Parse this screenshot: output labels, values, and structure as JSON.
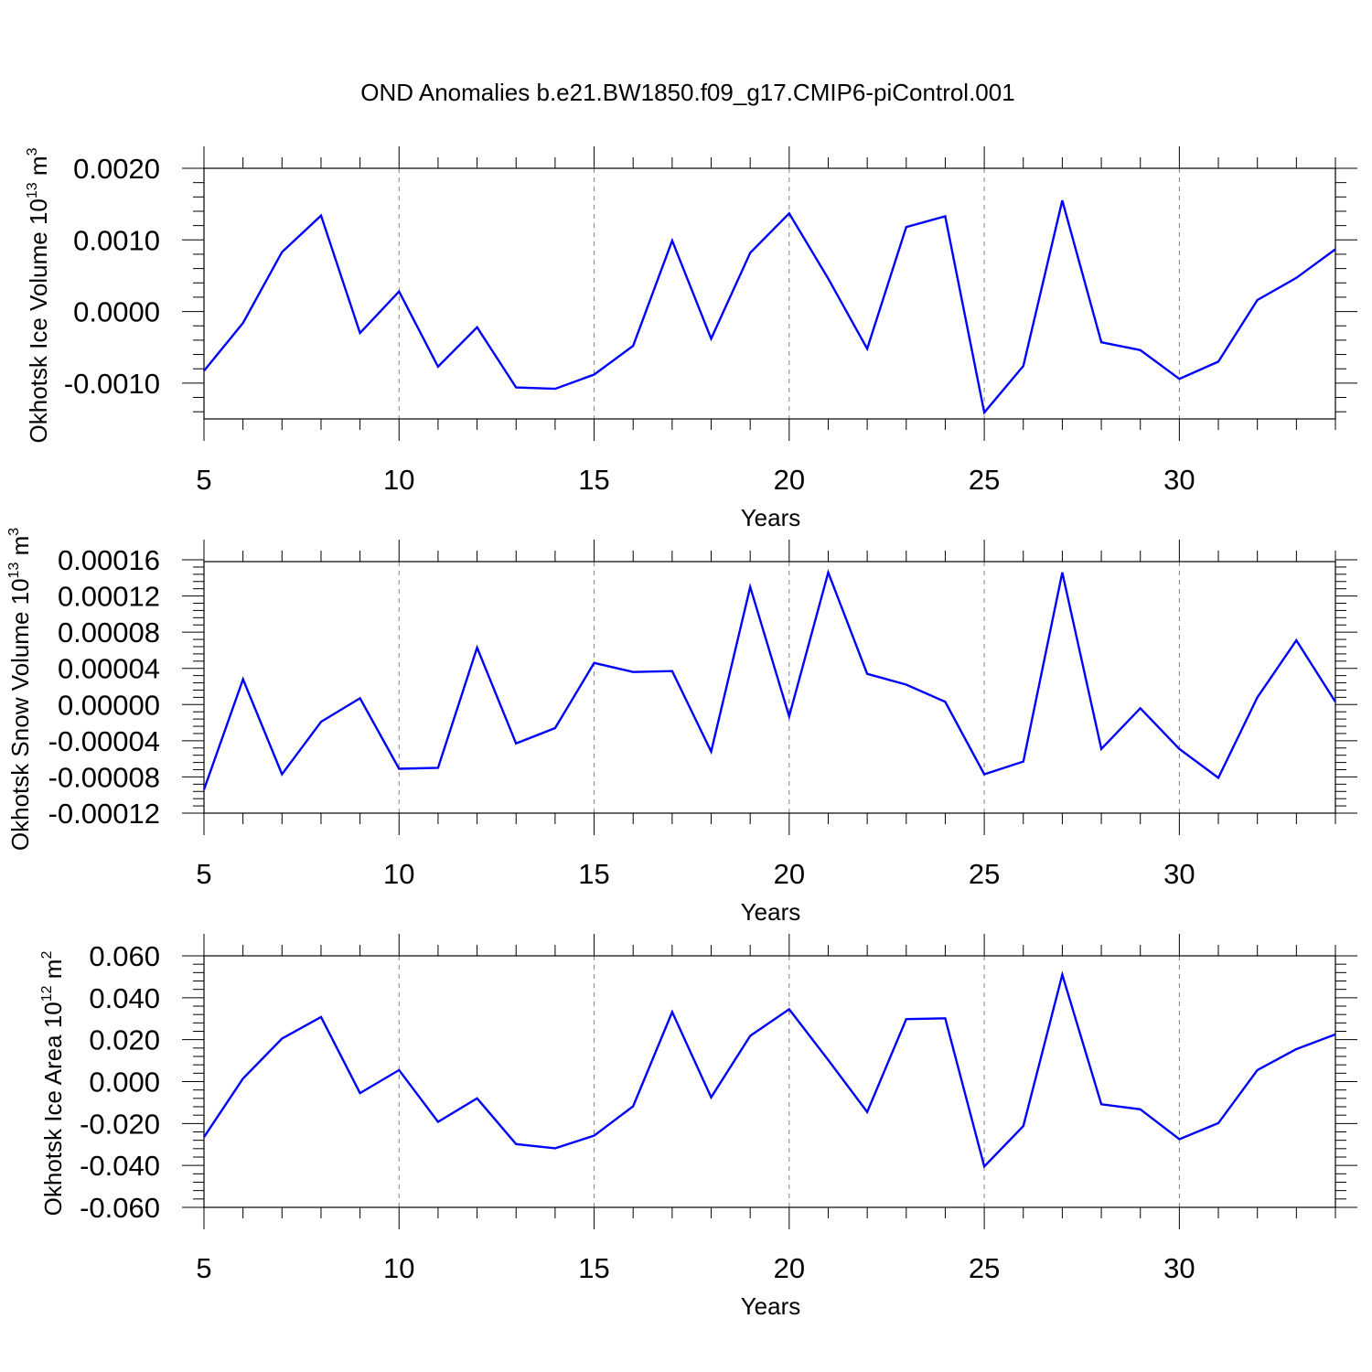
{
  "title": "OND Anomalies b.e21.BW1850.f09_g17.CMIP6-piControl.001",
  "colors": {
    "line": "#0000ff",
    "axis": "#000000",
    "grid": "#808080"
  },
  "chart_data": [
    {
      "type": "line",
      "ylabel_main": "Okhotsk Ice Volume 10",
      "ylabel_exp": "13",
      "ylabel_unit": " m",
      "ylabel_unit_exp": "3",
      "xlabel": "Years",
      "xlim": [
        5,
        34
      ],
      "ylim": [
        -0.0015,
        0.002
      ],
      "xticks": [
        5,
        10,
        15,
        20,
        25,
        30
      ],
      "yticks": [
        -0.001,
        0.0,
        0.001,
        0.002
      ],
      "ytick_labels": [
        "-0.0010",
        "0.0000",
        "0.0010",
        "0.0020"
      ],
      "x": [
        5,
        6,
        7,
        8,
        9,
        10,
        11,
        12,
        13,
        14,
        15,
        16,
        17,
        18,
        19,
        20,
        21,
        22,
        23,
        24,
        25,
        26,
        27,
        28,
        29,
        30,
        31,
        32,
        33,
        34
      ],
      "series": [
        {
          "values": [
            -0.00083,
            -0.00016,
            0.00083,
            0.00134,
            -0.0003,
            0.00028,
            -0.00077,
            -0.00022,
            -0.00106,
            -0.00108,
            -0.00088,
            -0.00048,
            0.00099,
            -0.00038,
            0.00082,
            0.00137,
            0.00046,
            -0.00052,
            0.00118,
            0.00133,
            -0.00141,
            -0.00076,
            0.00155,
            -0.00043,
            -0.00054,
            -0.00094,
            -0.0007,
            0.00016,
            0.00047,
            0.00087
          ]
        }
      ],
      "grid": "dashed vertical at major x ticks"
    },
    {
      "type": "line",
      "ylabel_main": "Okhotsk Snow Volume 10",
      "ylabel_exp": "13",
      "ylabel_unit": " m",
      "ylabel_unit_exp": "3",
      "xlabel": "Years",
      "xlim": [
        5,
        34
      ],
      "ylim": [
        -0.00012,
        0.000158
      ],
      "xticks": [
        5,
        10,
        15,
        20,
        25,
        30
      ],
      "yticks": [
        -0.00012,
        -8e-05,
        -4e-05,
        0.0,
        4e-05,
        8e-05,
        0.00012,
        0.00016
      ],
      "ytick_labels": [
        "-0.00012",
        "-0.00008",
        "-0.00004",
        "0.00000",
        "0.00004",
        "0.00008",
        "0.00012",
        "0.00016"
      ],
      "x": [
        5,
        6,
        7,
        8,
        9,
        10,
        11,
        12,
        13,
        14,
        15,
        16,
        17,
        18,
        19,
        20,
        21,
        22,
        23,
        24,
        25,
        26,
        27,
        28,
        29,
        30,
        31,
        32,
        33,
        34
      ],
      "series": [
        {
          "values": [
            -9.4e-05,
            2.8e-05,
            -7.7e-05,
            -1.9e-05,
            7e-06,
            -7.1e-05,
            -7e-05,
            6.3e-05,
            -4.3e-05,
            -2.6e-05,
            4.6e-05,
            3.6e-05,
            3.7e-05,
            -5.2e-05,
            0.00013,
            -1.3e-05,
            0.000146,
            3.4e-05,
            2.2e-05,
            3e-06,
            -7.7e-05,
            -6.3e-05,
            0.000146,
            -4.9e-05,
            -4e-06,
            -4.9e-05,
            -8.1e-05,
            8e-06,
            7.1e-05,
            3e-06
          ]
        }
      ],
      "grid": "dashed vertical at major x ticks"
    },
    {
      "type": "line",
      "ylabel_main": "Okhotsk Ice Area 10",
      "ylabel_exp": "12",
      "ylabel_unit": " m",
      "ylabel_unit_exp": "2",
      "xlabel": "Years",
      "xlim": [
        5,
        34
      ],
      "ylim": [
        -0.06,
        0.06
      ],
      "xticks": [
        5,
        10,
        15,
        20,
        25,
        30
      ],
      "yticks": [
        -0.06,
        -0.04,
        -0.02,
        0.0,
        0.02,
        0.04,
        0.06
      ],
      "ytick_labels": [
        "-0.060",
        "-0.040",
        "-0.020",
        "0.000",
        "0.020",
        "0.040",
        "0.060"
      ],
      "x": [
        5,
        6,
        7,
        8,
        9,
        10,
        11,
        12,
        13,
        14,
        15,
        16,
        17,
        18,
        19,
        20,
        21,
        22,
        23,
        24,
        25,
        26,
        27,
        28,
        29,
        30,
        31,
        32,
        33,
        34
      ],
      "series": [
        {
          "values": [
            -0.0265,
            0.0015,
            0.0205,
            0.0308,
            -0.0055,
            0.0055,
            -0.0192,
            -0.008,
            -0.0298,
            -0.0318,
            -0.0258,
            -0.0118,
            0.0332,
            -0.0075,
            0.0218,
            0.0345,
            0.0103,
            -0.0145,
            0.0298,
            0.0302,
            -0.0405,
            -0.0212,
            0.051,
            -0.0108,
            -0.0132,
            -0.0275,
            -0.0198,
            0.0055,
            0.0155,
            0.0225
          ]
        }
      ],
      "grid": "dashed vertical at major x ticks"
    }
  ]
}
